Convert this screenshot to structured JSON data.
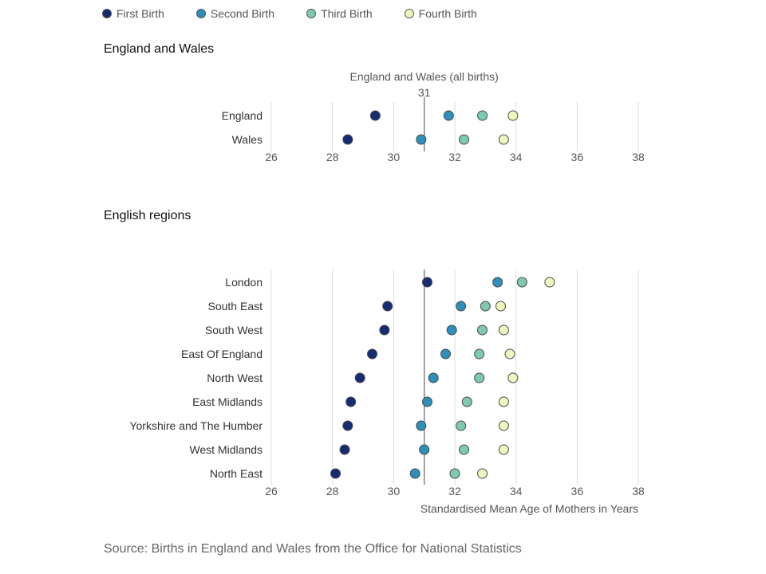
{
  "legend": [
    {
      "label": "First Birth",
      "color": "#152b73"
    },
    {
      "label": "Second Birth",
      "color": "#2d8fbc"
    },
    {
      "label": "Third Birth",
      "color": "#7ecaad"
    },
    {
      "label": "Fourth Birth",
      "color": "#eef7bd"
    }
  ],
  "sections": {
    "ew_title": "England and Wales",
    "regions_title": "English regions"
  },
  "source": "Source: Births in England and Wales from the Office for National Statistics",
  "chart_data": [
    {
      "type": "scatter",
      "title": "England and Wales",
      "categories": [
        "England",
        "Wales"
      ],
      "xlim": [
        26,
        38
      ],
      "xticks": [
        26,
        28,
        30,
        32,
        34,
        36,
        38
      ],
      "xlabel": "",
      "grid": true,
      "reference_line": {
        "value": 31,
        "label": "England and Wales (all births)",
        "value_label": "31"
      },
      "series": [
        {
          "name": "First Birth",
          "values": [
            29.4,
            28.5
          ]
        },
        {
          "name": "Second Birth",
          "values": [
            31.8,
            30.9
          ]
        },
        {
          "name": "Third Birth",
          "values": [
            32.9,
            32.3
          ]
        },
        {
          "name": "Fourth Birth",
          "values": [
            33.9,
            33.6
          ]
        }
      ]
    },
    {
      "type": "scatter",
      "title": "English regions",
      "categories": [
        "London",
        "South East",
        "South West",
        "East Of England",
        "North West",
        "East Midlands",
        "Yorkshire and The Humber",
        "West Midlands",
        "North East"
      ],
      "xlim": [
        26,
        38
      ],
      "xticks": [
        26,
        28,
        30,
        32,
        34,
        36,
        38
      ],
      "xlabel": "Standardised Mean Age of Mothers in Years",
      "grid": true,
      "reference_line": {
        "value": 31
      },
      "series": [
        {
          "name": "First Birth",
          "values": [
            31.1,
            29.8,
            29.7,
            29.3,
            28.9,
            28.6,
            28.5,
            28.4,
            28.1
          ]
        },
        {
          "name": "Second Birth",
          "values": [
            33.4,
            32.2,
            31.9,
            31.7,
            31.3,
            31.1,
            30.9,
            31.0,
            30.7
          ]
        },
        {
          "name": "Third Birth",
          "values": [
            34.2,
            33.0,
            32.9,
            32.8,
            32.8,
            32.4,
            32.2,
            32.3,
            32.0
          ]
        },
        {
          "name": "Fourth Birth",
          "values": [
            35.1,
            33.5,
            33.6,
            33.8,
            33.9,
            33.6,
            33.6,
            33.6,
            32.9
          ]
        }
      ]
    }
  ]
}
